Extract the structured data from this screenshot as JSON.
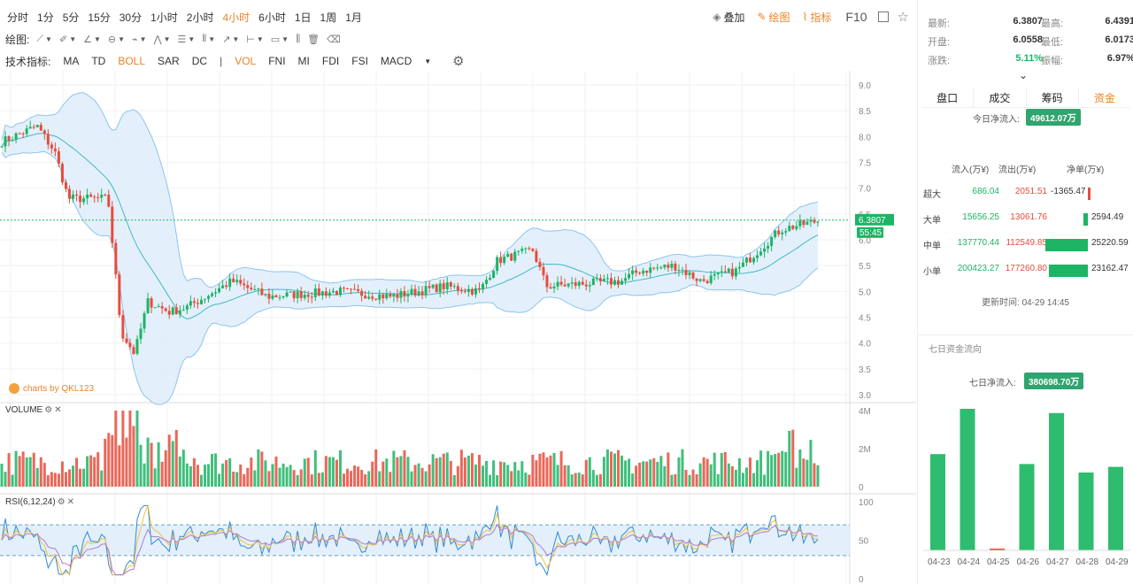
{
  "periods": [
    {
      "label": "分时",
      "active": false
    },
    {
      "label": "1分",
      "active": false
    },
    {
      "label": "5分",
      "active": false
    },
    {
      "label": "15分",
      "active": false
    },
    {
      "label": "30分",
      "active": false
    },
    {
      "label": "1小时",
      "active": false
    },
    {
      "label": "2小时",
      "active": false
    },
    {
      "label": "4小时",
      "active": true
    },
    {
      "label": "6小时",
      "active": false
    },
    {
      "label": "1日",
      "active": false
    },
    {
      "label": "1周",
      "active": false
    },
    {
      "label": "1月",
      "active": false
    }
  ],
  "tools_right": {
    "overlay": "叠加",
    "draw": "绘图",
    "indicator": "指标",
    "f10": "F10"
  },
  "draw_bar": {
    "label": "绘图:"
  },
  "indicator_bar": {
    "label": "技术指标:",
    "main": [
      {
        "label": "MA",
        "on": false
      },
      {
        "label": "TD",
        "on": false
      },
      {
        "label": "BOLL",
        "on": true
      },
      {
        "label": "SAR",
        "on": false
      },
      {
        "label": "DC",
        "on": false
      }
    ],
    "sep": "|",
    "sub": [
      {
        "label": "VOL",
        "on": true
      },
      {
        "label": "FNI",
        "on": false
      },
      {
        "label": "MI",
        "on": false
      },
      {
        "label": "FDI",
        "on": false
      },
      {
        "label": "FSI",
        "on": false
      },
      {
        "label": "MACD",
        "on": false
      }
    ]
  },
  "chart": {
    "price_axis": [
      "9.0",
      "8.5",
      "8.0",
      "7.5",
      "7.0",
      "6.5",
      "6.0",
      "5.5",
      "5.0",
      "4.5",
      "4.0",
      "3.5",
      "3.0"
    ],
    "current_price": "6.3807",
    "countdown": "55:45",
    "watermark": "charts by QKL123",
    "volume_label": "VOLUME",
    "volume_axis": [
      "4M",
      "2M",
      "0"
    ],
    "rsi_label": "RSI(6,12,24)",
    "rsi_axis": [
      "100",
      "50",
      "0"
    ],
    "colors": {
      "up": "#1db465",
      "down": "#e74c3c",
      "band": "#dcecfa"
    }
  },
  "quote": {
    "latest_label": "最新:",
    "latest": "6.3807",
    "high_label": "最高:",
    "high": "6.4391",
    "open_label": "开盘:",
    "open": "6.0558",
    "low_label": "最低:",
    "low": "6.0173",
    "change_label": "涨跌:",
    "change": "5.11%",
    "amp_label": "振幅:",
    "amp": "6.97%"
  },
  "tabs": [
    {
      "label": "盘口",
      "active": false
    },
    {
      "label": "成交",
      "active": false
    },
    {
      "label": "筹码",
      "active": false
    },
    {
      "label": "资金",
      "active": true
    }
  ],
  "flow": {
    "today_label": "今日净流入:",
    "today_value": "49612.07万",
    "headers": {
      "in": "流入(万¥)",
      "out": "流出(万¥)",
      "net": "净单(万¥)"
    },
    "rows": [
      {
        "name": "超大",
        "in": "686.04",
        "out": "2051.51",
        "net": "-1365.47",
        "net_value": -1365.47
      },
      {
        "name": "大单",
        "in": "15656.25",
        "out": "13061.76",
        "net": "2594.49",
        "net_value": 2594.49
      },
      {
        "name": "中单",
        "in": "137770.44",
        "out": "112549.85",
        "net": "25220.59",
        "net_value": 25220.59
      },
      {
        "name": "小单",
        "in": "200423.27",
        "out": "177260.80",
        "net": "23162.47",
        "net_value": 23162.47
      }
    ],
    "update_label": "更新时间:",
    "update_time": "04-29 14:45"
  },
  "seven_day": {
    "title": "七日资金流向",
    "net_label": "七日净流入:",
    "net_value": "380698.70万",
    "chart_data": {
      "type": "bar",
      "categories": [
        "04-23",
        "04-24",
        "04-25",
        "04-26",
        "04-27",
        "04-28",
        "04-29"
      ],
      "values": [
        0.68,
        1.0,
        0.01,
        0.61,
        0.97,
        0.55,
        0.59
      ]
    }
  }
}
